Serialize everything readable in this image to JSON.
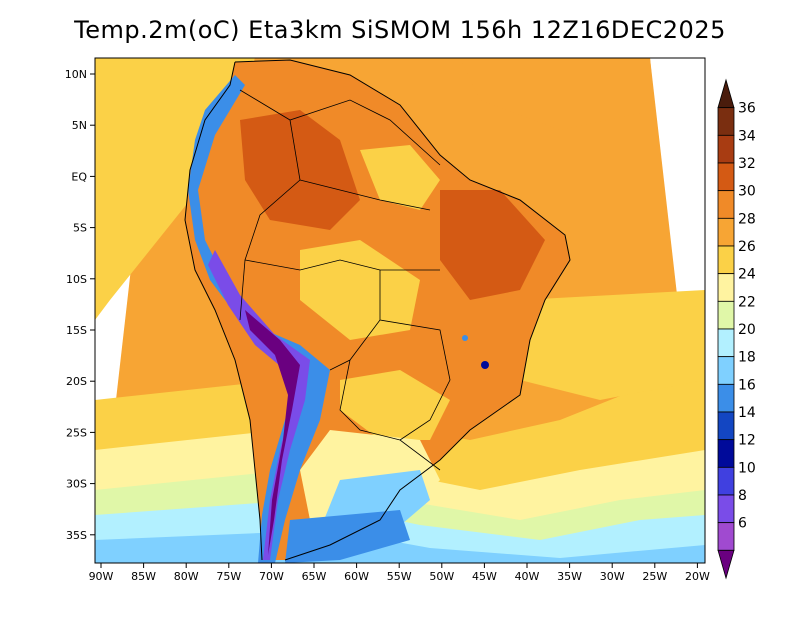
{
  "title": "Temp.2m(oC) Eta3km SiSMOM 156h 12Z16DEC2025",
  "map": {
    "lat_labels": [
      "10N",
      "5N",
      "EQ",
      "5S",
      "10S",
      "15S",
      "20S",
      "25S",
      "30S",
      "35S"
    ],
    "lon_labels": [
      "90W",
      "85W",
      "80W",
      "75W",
      "70W",
      "65W",
      "60W",
      "55W",
      "50W",
      "45W",
      "40W",
      "35W",
      "30W",
      "25W",
      "20W"
    ]
  },
  "colorbar": {
    "labels": [
      "36",
      "34",
      "32",
      "30",
      "28",
      "26",
      "24",
      "22",
      "20",
      "18",
      "16",
      "14",
      "12",
      "10",
      "8",
      "6"
    ],
    "colors": [
      "#4a1c0c",
      "#7a2e10",
      "#a83c12",
      "#d45a14",
      "#f08a28",
      "#f7a534",
      "#fbd147",
      "#fff3a0",
      "#e0f7a8",
      "#b2f0ff",
      "#7fd0ff",
      "#3b8ee8",
      "#1346c2",
      "#000a9a",
      "#4040e0",
      "#7a4ce8",
      "#a04ad0",
      "#6a0080"
    ]
  }
}
